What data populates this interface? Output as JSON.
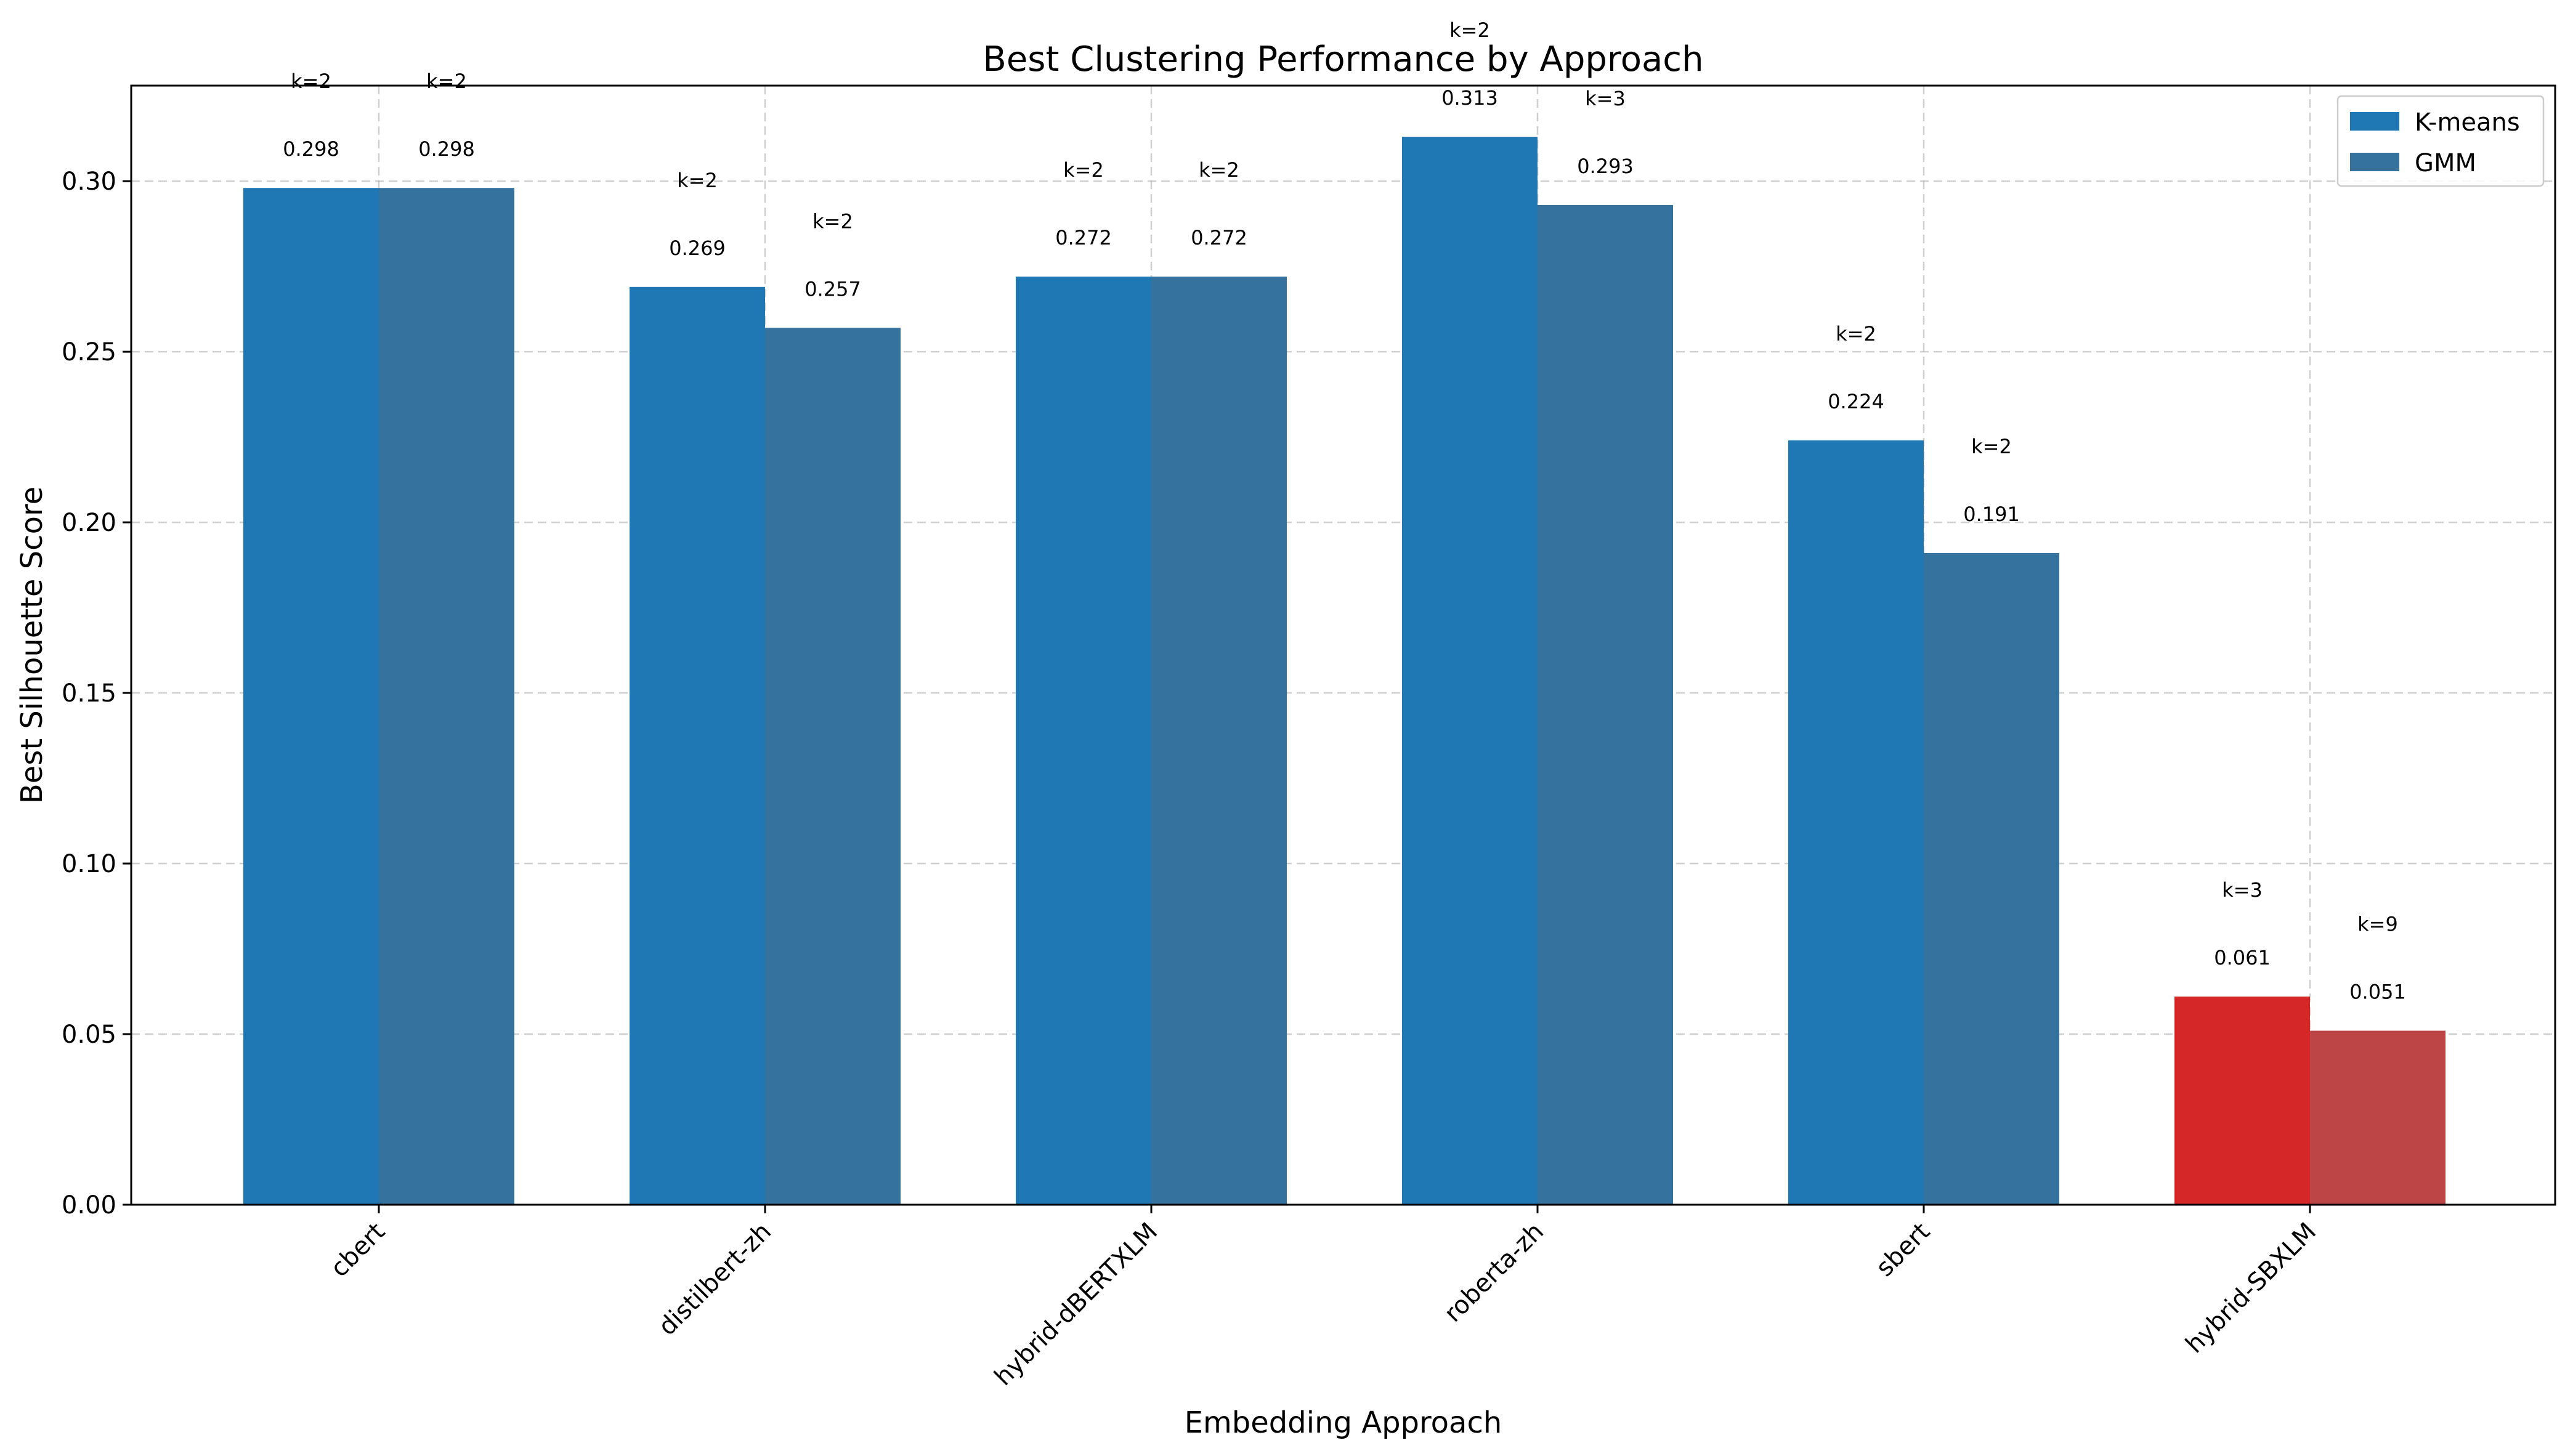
{
  "chart_data": {
    "type": "bar",
    "title": "Best Clustering Performance by Approach",
    "xlabel": "Embedding Approach",
    "ylabel": "Best Silhouette Score",
    "categories": [
      "cbert",
      "distilbert-zh",
      "hybrid-dBERTXLM",
      "roberta-zh",
      "sbert",
      "hybrid-SBXLM"
    ],
    "series": [
      {
        "name": "K-means",
        "color": "#1f77b4",
        "values": [
          0.298,
          0.269,
          0.272,
          0.313,
          0.224,
          0.061
        ],
        "value_labels": [
          "0.298",
          "0.269",
          "0.272",
          "0.313",
          "0.224",
          "0.061"
        ],
        "k_labels": [
          "k=2",
          "k=2",
          "k=2",
          "k=2",
          "k=2",
          "k=3"
        ]
      },
      {
        "name": "GMM",
        "color": "#35729e",
        "values": [
          0.298,
          0.257,
          0.272,
          0.293,
          0.191,
          0.051
        ],
        "value_labels": [
          "0.298",
          "0.257",
          "0.272",
          "0.293",
          "0.191",
          "0.051"
        ],
        "k_labels": [
          "k=2",
          "k=2",
          "k=2",
          "k=3",
          "k=2",
          "k=9"
        ]
      }
    ],
    "highlight": {
      "category": "hybrid-SBXLM",
      "colors": [
        "#d62728",
        "#bd4545"
      ]
    },
    "ylim": [
      0,
      0.328
    ],
    "yticks": [
      0.0,
      0.05,
      0.1,
      0.15,
      0.2,
      0.25,
      0.3
    ],
    "ytick_labels": [
      "0.00",
      "0.05",
      "0.10",
      "0.15",
      "0.20",
      "0.25",
      "0.30"
    ],
    "grid": true,
    "legend": "top-right"
  }
}
